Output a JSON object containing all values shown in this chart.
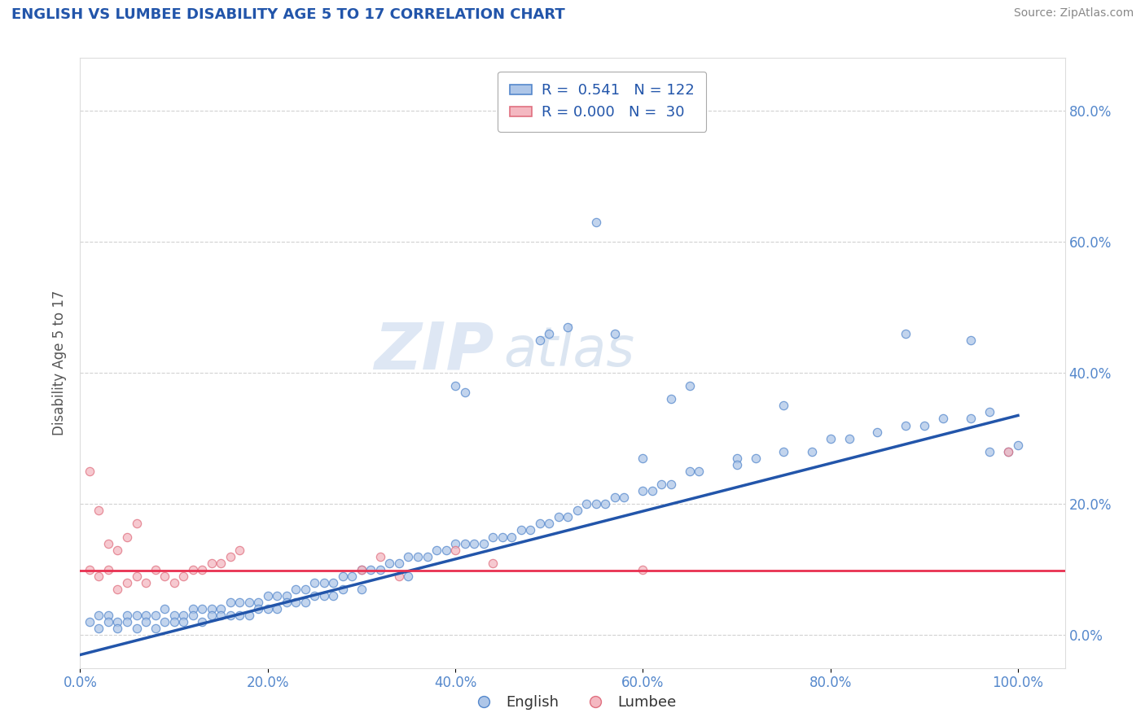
{
  "title": "ENGLISH VS LUMBEE DISABILITY AGE 5 TO 17 CORRELATION CHART",
  "source_text": "Source: ZipAtlas.com",
  "ylabel": "Disability Age 5 to 17",
  "xlim": [
    0.0,
    1.05
  ],
  "ylim": [
    -0.05,
    0.88
  ],
  "xtick_labels": [
    "0.0%",
    "20.0%",
    "40.0%",
    "60.0%",
    "80.0%",
    "100.0%"
  ],
  "xtick_vals": [
    0.0,
    0.2,
    0.4,
    0.6,
    0.8,
    1.0
  ],
  "ytick_labels": [
    "0.0%",
    "20.0%",
    "40.0%",
    "60.0%",
    "80.0%"
  ],
  "ytick_vals": [
    0.0,
    0.2,
    0.4,
    0.6,
    0.8
  ],
  "english_R": "0.541",
  "english_N": "122",
  "lumbee_R": "0.000",
  "lumbee_N": "30",
  "english_color": "#aec6e8",
  "lumbee_color": "#f4b8c1",
  "english_edge_color": "#5588cc",
  "lumbee_edge_color": "#e07080",
  "english_line_color": "#2255aa",
  "lumbee_line_color": "#e83050",
  "english_trend": [
    0.0,
    -0.03,
    1.0,
    0.335
  ],
  "lumbee_trend_y": 0.098,
  "watermark_zip": "ZIP",
  "watermark_atlas": "atlas",
  "title_color": "#2255aa",
  "source_color": "#888888",
  "axis_label_color": "#555555",
  "tick_color": "#5588cc",
  "grid_color": "#cccccc",
  "background_color": "#ffffff",
  "english_x": [
    0.01,
    0.02,
    0.02,
    0.03,
    0.03,
    0.04,
    0.04,
    0.05,
    0.05,
    0.06,
    0.06,
    0.07,
    0.07,
    0.08,
    0.08,
    0.09,
    0.09,
    0.1,
    0.1,
    0.11,
    0.11,
    0.12,
    0.12,
    0.13,
    0.13,
    0.14,
    0.14,
    0.15,
    0.15,
    0.16,
    0.16,
    0.17,
    0.17,
    0.18,
    0.18,
    0.19,
    0.19,
    0.2,
    0.2,
    0.21,
    0.21,
    0.22,
    0.22,
    0.23,
    0.23,
    0.24,
    0.24,
    0.25,
    0.25,
    0.26,
    0.26,
    0.27,
    0.27,
    0.28,
    0.28,
    0.29,
    0.3,
    0.3,
    0.31,
    0.32,
    0.33,
    0.34,
    0.35,
    0.35,
    0.36,
    0.37,
    0.38,
    0.39,
    0.4,
    0.41,
    0.42,
    0.43,
    0.44,
    0.45,
    0.46,
    0.47,
    0.48,
    0.49,
    0.5,
    0.51,
    0.52,
    0.53,
    0.54,
    0.55,
    0.56,
    0.57,
    0.58,
    0.6,
    0.61,
    0.62,
    0.63,
    0.65,
    0.66,
    0.7,
    0.72,
    0.75,
    0.78,
    0.8,
    0.82,
    0.85,
    0.88,
    0.9,
    0.92,
    0.95,
    0.97,
    0.99,
    1.0,
    0.4,
    0.41,
    0.49,
    0.5,
    0.52,
    0.55,
    0.57,
    0.6,
    0.63,
    0.65,
    0.7,
    0.75,
    0.88,
    0.95,
    0.97
  ],
  "english_y": [
    0.02,
    0.03,
    0.01,
    0.03,
    0.02,
    0.02,
    0.01,
    0.03,
    0.02,
    0.03,
    0.01,
    0.03,
    0.02,
    0.03,
    0.01,
    0.04,
    0.02,
    0.03,
    0.02,
    0.03,
    0.02,
    0.04,
    0.03,
    0.04,
    0.02,
    0.04,
    0.03,
    0.04,
    0.03,
    0.05,
    0.03,
    0.05,
    0.03,
    0.05,
    0.03,
    0.05,
    0.04,
    0.06,
    0.04,
    0.06,
    0.04,
    0.06,
    0.05,
    0.07,
    0.05,
    0.07,
    0.05,
    0.08,
    0.06,
    0.08,
    0.06,
    0.08,
    0.06,
    0.09,
    0.07,
    0.09,
    0.1,
    0.07,
    0.1,
    0.1,
    0.11,
    0.11,
    0.12,
    0.09,
    0.12,
    0.12,
    0.13,
    0.13,
    0.14,
    0.14,
    0.14,
    0.14,
    0.15,
    0.15,
    0.15,
    0.16,
    0.16,
    0.17,
    0.17,
    0.18,
    0.18,
    0.19,
    0.2,
    0.2,
    0.2,
    0.21,
    0.21,
    0.22,
    0.22,
    0.23,
    0.23,
    0.25,
    0.25,
    0.27,
    0.27,
    0.28,
    0.28,
    0.3,
    0.3,
    0.31,
    0.32,
    0.32,
    0.33,
    0.33,
    0.34,
    0.28,
    0.29,
    0.38,
    0.37,
    0.45,
    0.46,
    0.47,
    0.63,
    0.46,
    0.27,
    0.36,
    0.38,
    0.26,
    0.35,
    0.46,
    0.45,
    0.28
  ],
  "lumbee_x": [
    0.01,
    0.02,
    0.03,
    0.04,
    0.05,
    0.06,
    0.02,
    0.03,
    0.04,
    0.05,
    0.06,
    0.07,
    0.08,
    0.09,
    0.1,
    0.11,
    0.12,
    0.13,
    0.14,
    0.15,
    0.16,
    0.17,
    0.3,
    0.32,
    0.34,
    0.4,
    0.44,
    0.6,
    0.99,
    0.01
  ],
  "lumbee_y": [
    0.25,
    0.19,
    0.14,
    0.13,
    0.15,
    0.17,
    0.09,
    0.1,
    0.07,
    0.08,
    0.09,
    0.08,
    0.1,
    0.09,
    0.08,
    0.09,
    0.1,
    0.1,
    0.11,
    0.11,
    0.12,
    0.13,
    0.1,
    0.12,
    0.09,
    0.13,
    0.11,
    0.1,
    0.28,
    0.1
  ]
}
